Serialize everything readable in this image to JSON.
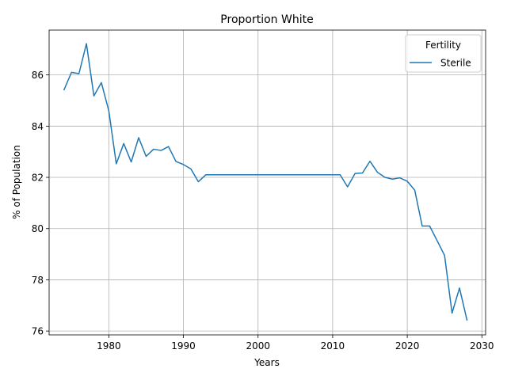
{
  "chart_data": {
    "type": "line",
    "title": "Proportion White",
    "xlabel": "Years",
    "ylabel": "% of Population",
    "xlim": [
      1972,
      2030.5
    ],
    "ylim": [
      75.85,
      87.75
    ],
    "x_ticks": [
      1980,
      1990,
      2000,
      2010,
      2020,
      2030
    ],
    "y_ticks": [
      76,
      78,
      80,
      82,
      84,
      86
    ],
    "grid": true,
    "legend": {
      "title": "Fertility",
      "position": "top-right"
    },
    "series": [
      {
        "name": "Sterile",
        "color": "#1f77b4",
        "x": [
          1974,
          1975,
          1976,
          1977,
          1978,
          1979,
          1980,
          1981,
          1982,
          1983,
          1984,
          1985,
          1986,
          1987,
          1988,
          1989,
          1990,
          1991,
          1992,
          1993,
          1994,
          1995,
          1996,
          1997,
          1998,
          1999,
          2000,
          2001,
          2002,
          2003,
          2004,
          2005,
          2006,
          2007,
          2008,
          2009,
          2010,
          2011,
          2012,
          2013,
          2014,
          2015,
          2016,
          2017,
          2018,
          2019,
          2020,
          2021,
          2022,
          2023,
          2024,
          2025,
          2026,
          2027,
          2028
        ],
        "y": [
          85.42,
          86.1,
          86.05,
          87.22,
          85.18,
          85.7,
          84.6,
          82.53,
          83.32,
          82.6,
          83.55,
          82.82,
          83.1,
          83.05,
          83.2,
          82.62,
          82.5,
          82.33,
          81.83,
          82.1,
          82.1,
          82.1,
          82.1,
          82.1,
          82.1,
          82.1,
          82.1,
          82.1,
          82.1,
          82.1,
          82.1,
          82.1,
          82.1,
          82.1,
          82.1,
          82.1,
          82.1,
          82.1,
          81.63,
          82.15,
          82.17,
          82.63,
          82.2,
          82.0,
          81.93,
          81.98,
          81.85,
          81.5,
          80.1,
          80.1,
          79.53,
          78.95,
          76.7,
          77.68,
          76.43
        ]
      }
    ]
  }
}
